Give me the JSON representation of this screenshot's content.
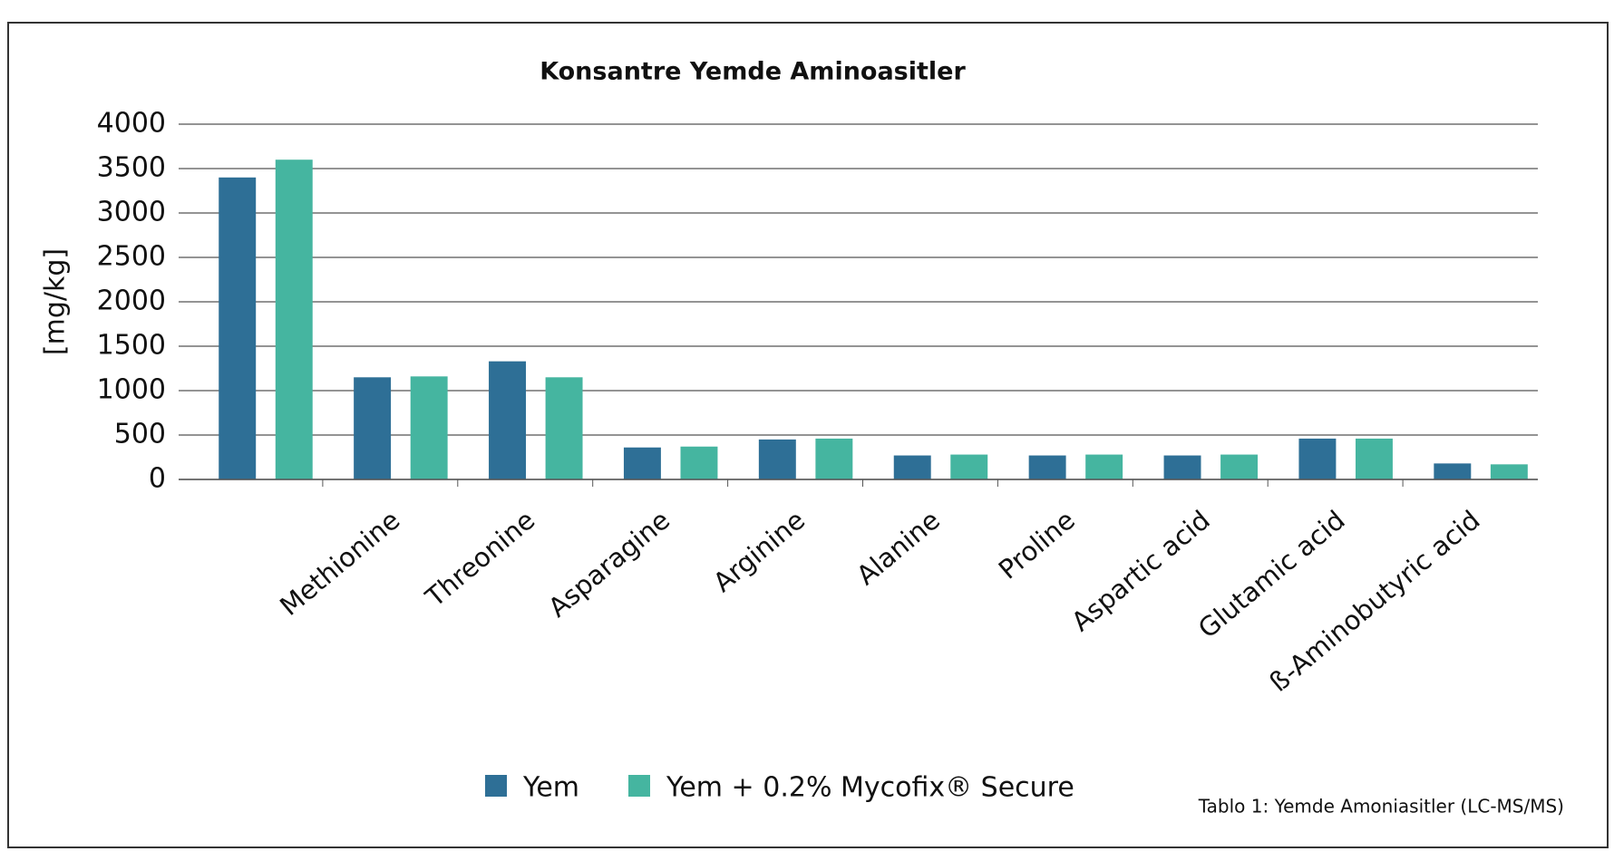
{
  "chart_data": {
    "type": "bar",
    "title": "Konsantre Yemde Aminoasitler",
    "y_label": "[mg/kg]",
    "categories": [
      null,
      "Methionine",
      "Threonine",
      "Asparagine",
      "Arginine",
      "Alanine",
      "Proline",
      "Aspartic acid",
      "Glutamic acid",
      "ß-Aminobutyric acid"
    ],
    "series": [
      {
        "name": "Yem",
        "color": "#2e6f96",
        "values": [
          3400,
          1150,
          1330,
          360,
          450,
          270,
          270,
          270,
          460,
          180
        ]
      },
      {
        "name": "Yem + 0.2% Mycofix® Secure",
        "color": "#45b5a0",
        "values": [
          3600,
          1160,
          1150,
          370,
          460,
          280,
          280,
          280,
          460,
          170
        ]
      }
    ],
    "ylim": [
      0,
      4000
    ],
    "yticks": [
      0,
      500,
      1000,
      1500,
      2000,
      2500,
      3000,
      3500,
      4000
    ],
    "grid": true,
    "legend": "bottom",
    "caption": "Tablo 1: Yemde Amoniasitler (LC-MS/MS)"
  }
}
